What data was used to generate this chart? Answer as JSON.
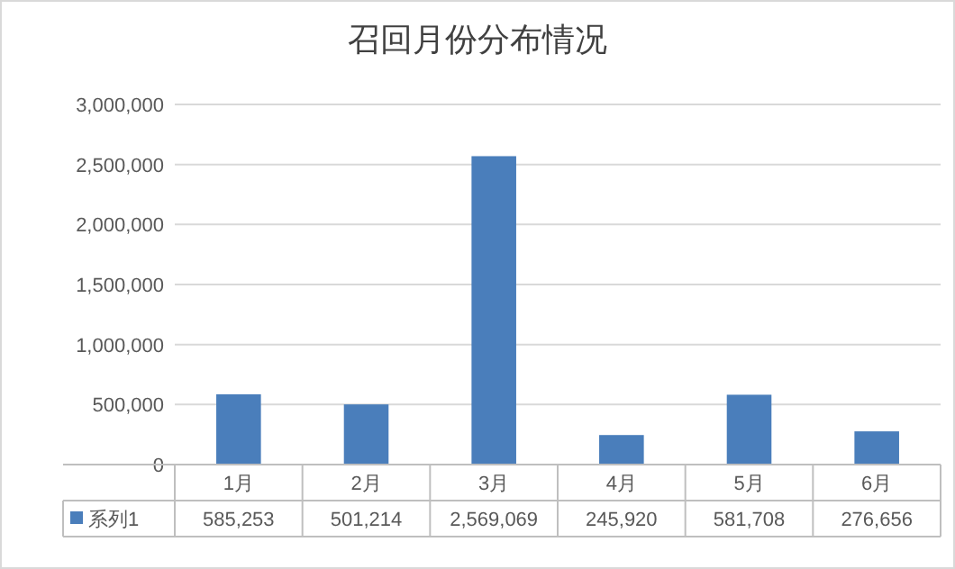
{
  "chart_data": {
    "type": "bar",
    "title": "召回月份分布情况",
    "categories": [
      "1月",
      "2月",
      "3月",
      "4月",
      "5月",
      "6月"
    ],
    "series": [
      {
        "name": "系列1",
        "color": "#4a7ebb",
        "values": [
          585253,
          501214,
          2569069,
          245920,
          581708,
          276656
        ],
        "value_labels": [
          "585,253",
          "501,214",
          "2,569,069",
          "245,920",
          "581,708",
          "276,656"
        ]
      }
    ],
    "ylim": [
      0,
      3000000
    ],
    "yticks": [
      {
        "value": 0,
        "label": "0"
      },
      {
        "value": 500000,
        "label": "500,000"
      },
      {
        "value": 1000000,
        "label": "1,000,000"
      },
      {
        "value": 1500000,
        "label": "1,500,000"
      },
      {
        "value": 2000000,
        "label": "2,000,000"
      },
      {
        "value": 2500000,
        "label": "2,500,000"
      },
      {
        "value": 3000000,
        "label": "3,000,000"
      }
    ],
    "grid": "y",
    "legend": "bottom"
  }
}
